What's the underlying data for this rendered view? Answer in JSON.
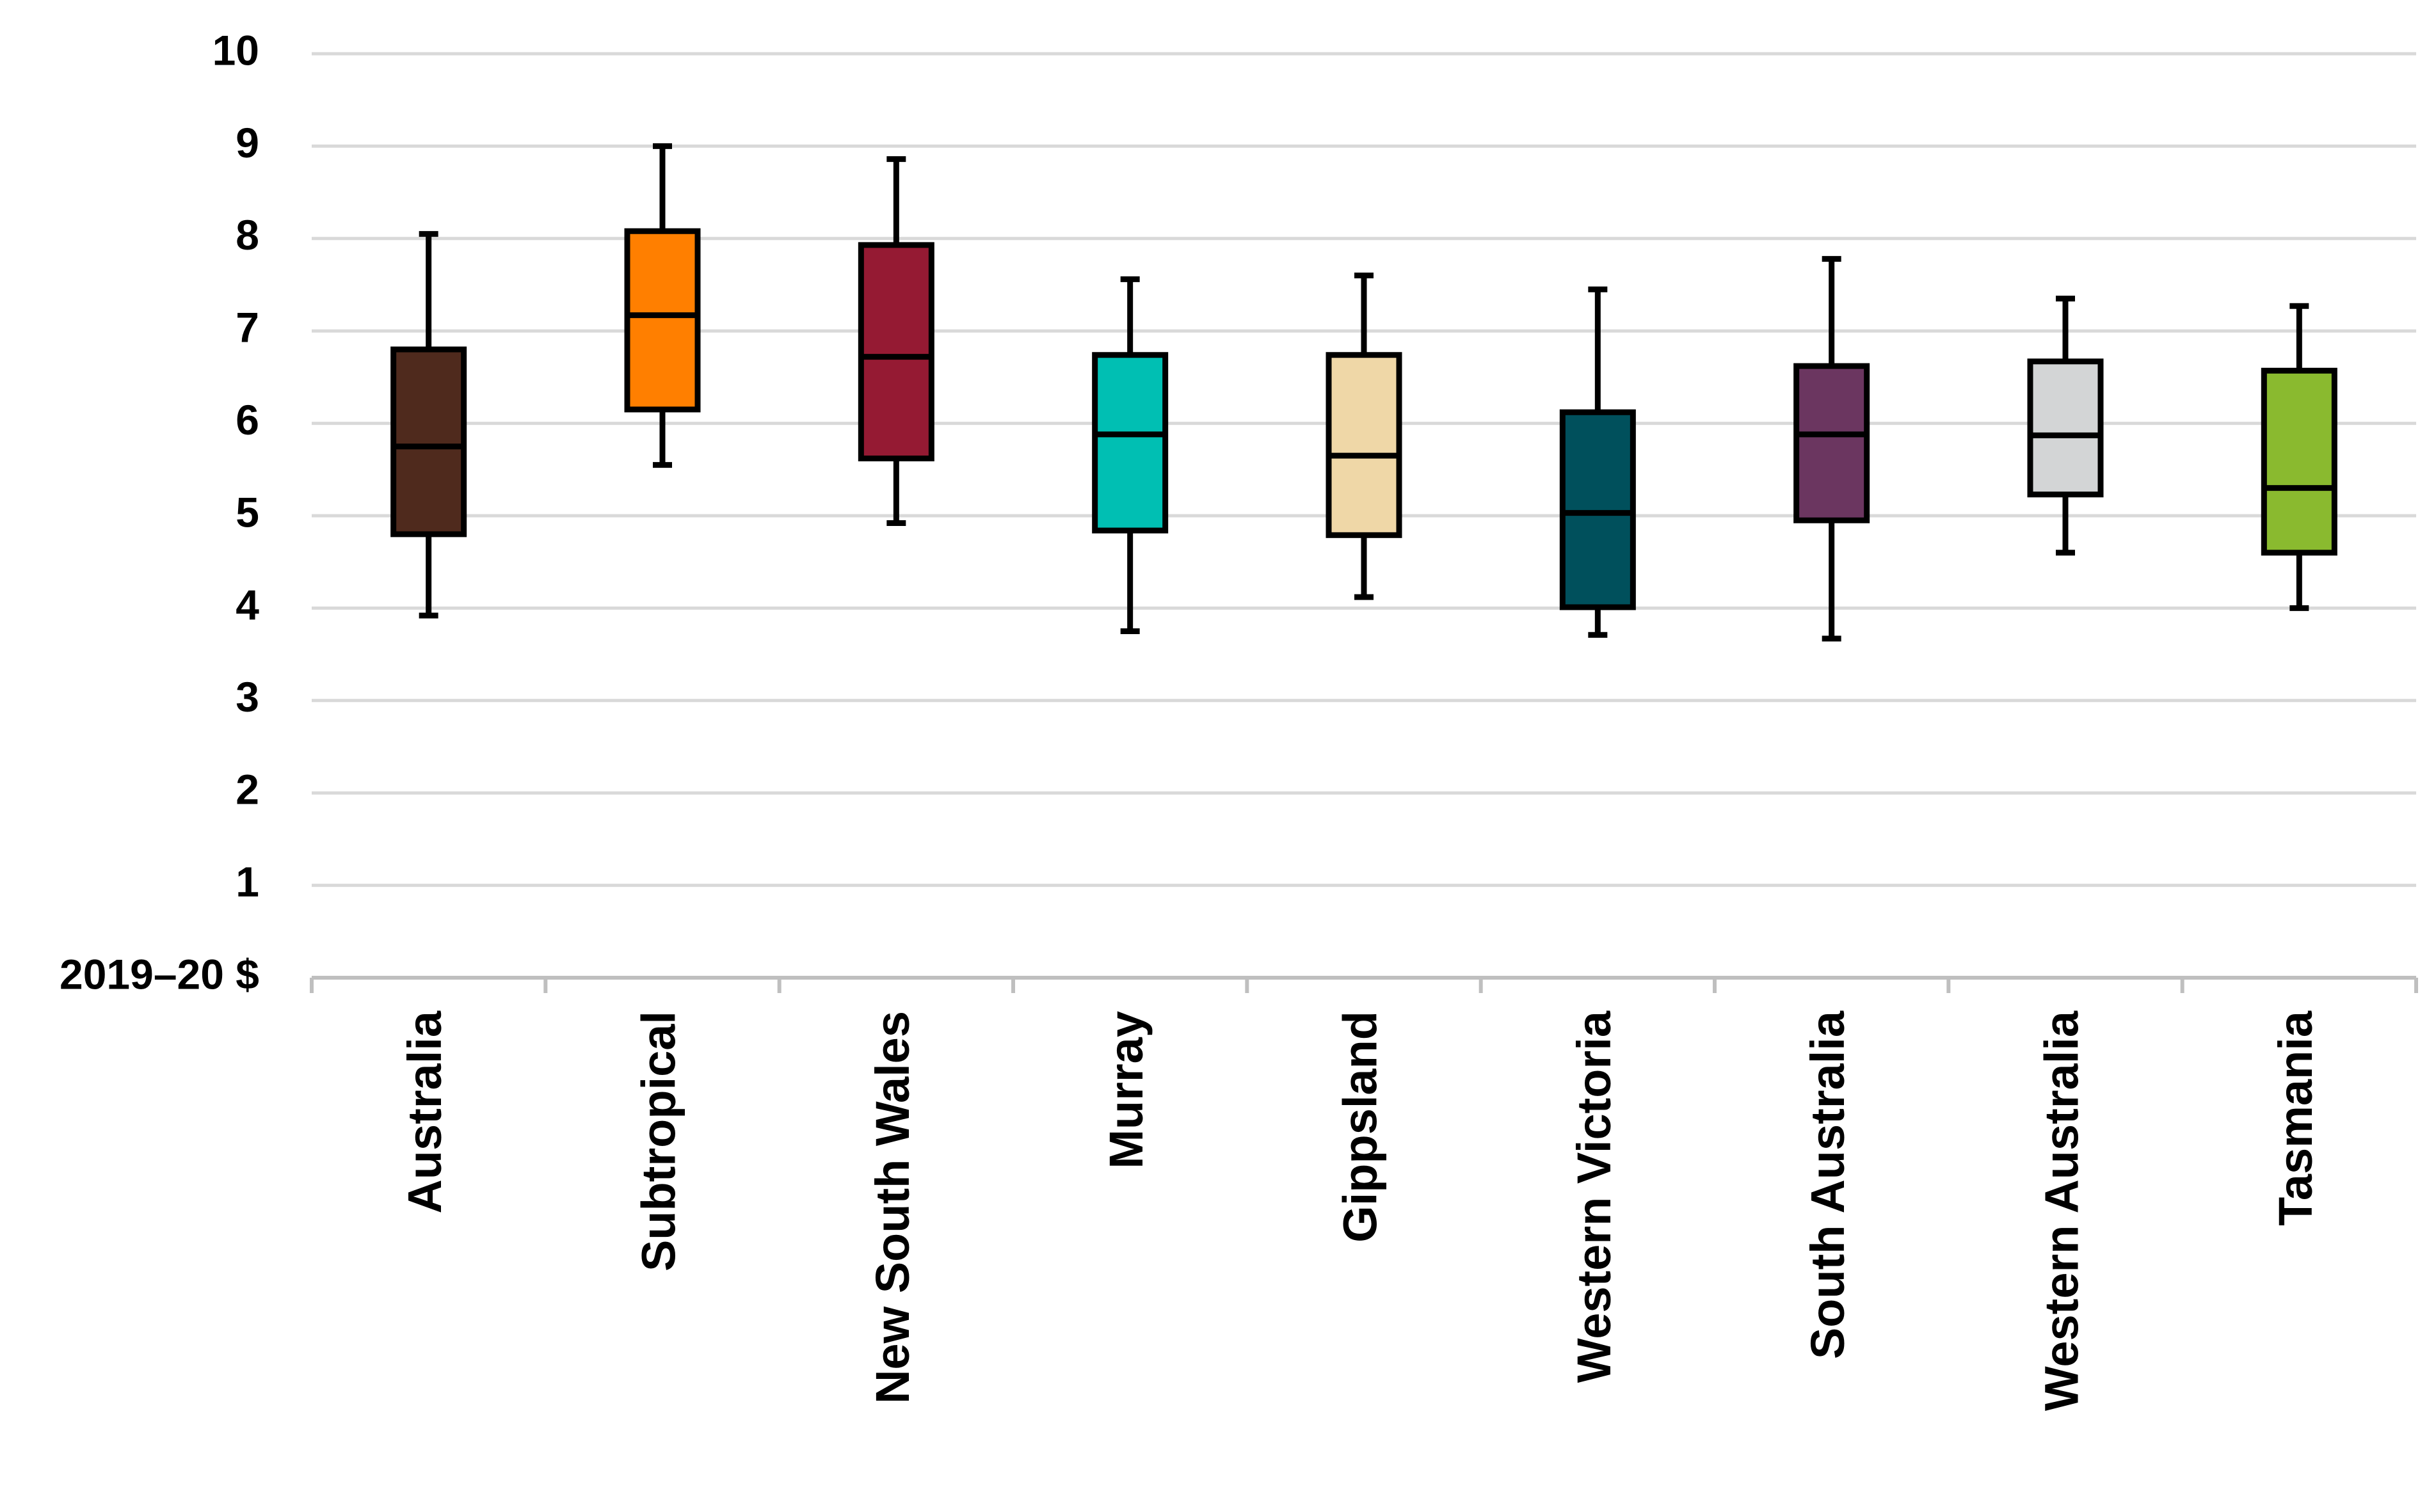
{
  "chart_data": {
    "type": "boxplot",
    "title": "",
    "xlabel": "",
    "ylabel": "",
    "y_unit_label": "2019–20 $",
    "ylim": [
      0,
      10
    ],
    "yticks": [
      1,
      2,
      3,
      4,
      5,
      6,
      7,
      8,
      9,
      10
    ],
    "grid": true,
    "legend": "none",
    "categories": [
      "Australia",
      "Subtropical",
      "New South Wales",
      "Murray",
      "Gippsland",
      "Western Victoria",
      "South Australia",
      "Western Australia",
      "Tasmania"
    ],
    "boxes": [
      {
        "min": 3.92,
        "q1": 4.8,
        "median": 5.75,
        "q3": 6.8,
        "max": 8.05,
        "color": "#4f2a1d"
      },
      {
        "min": 5.55,
        "q1": 6.15,
        "median": 7.17,
        "q3": 8.08,
        "max": 9.0,
        "color": "#ff7f00"
      },
      {
        "min": 4.92,
        "q1": 5.62,
        "median": 6.72,
        "q3": 7.93,
        "max": 8.86,
        "color": "#951a33"
      },
      {
        "min": 3.75,
        "q1": 4.84,
        "median": 5.88,
        "q3": 6.74,
        "max": 7.56,
        "color": "#00bfb3"
      },
      {
        "min": 4.12,
        "q1": 4.79,
        "median": 5.65,
        "q3": 6.74,
        "max": 7.6,
        "color": "#efd7a7"
      },
      {
        "min": 3.71,
        "q1": 4.01,
        "median": 5.03,
        "q3": 6.12,
        "max": 7.45,
        "color": "#00505c"
      },
      {
        "min": 3.67,
        "q1": 4.95,
        "median": 5.88,
        "q3": 6.62,
        "max": 7.78,
        "color": "#6b3660"
      },
      {
        "min": 4.6,
        "q1": 5.23,
        "median": 5.87,
        "q3": 6.67,
        "max": 7.35,
        "color": "#d3d5d6"
      },
      {
        "min": 4.0,
        "q1": 4.6,
        "median": 5.3,
        "q3": 6.57,
        "max": 7.27,
        "color": "#8aba2f"
      }
    ]
  }
}
